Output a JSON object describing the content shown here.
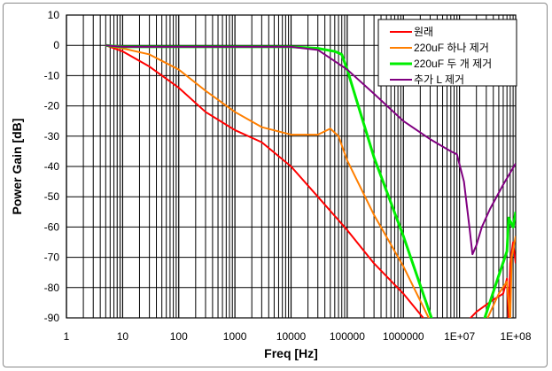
{
  "chart_data": {
    "type": "line",
    "xlabel": "Freq [Hz]",
    "ylabel": "Power Gain [dB]",
    "xscale": "log",
    "xlim": [
      1,
      100000000
    ],
    "ylim": [
      -90,
      10
    ],
    "grid": true,
    "legend_position": "top-right",
    "x_tick_labels": [
      "1",
      "10",
      "100",
      "1000",
      "10000",
      "100000",
      "1000000",
      "1E+07",
      "1E+08"
    ],
    "y_tick_labels": [
      "10",
      "0",
      "-10",
      "-20",
      "-30",
      "-40",
      "-50",
      "-60",
      "-70",
      "-80",
      "-90"
    ],
    "series": [
      {
        "name": "원래",
        "color": "#ff0000",
        "segments": [
          [
            [
              5,
              0
            ],
            [
              10,
              -2
            ],
            [
              30,
              -7
            ],
            [
              100,
              -14
            ],
            [
              300,
              -22
            ],
            [
              1000,
              -28
            ],
            [
              3000,
              -32
            ],
            [
              10000,
              -40
            ],
            [
              30000,
              -50
            ],
            [
              100000,
              -61
            ],
            [
              300000,
              -72
            ],
            [
              1000000,
              -82
            ],
            [
              2500000,
              -91
            ]
          ],
          [
            [
              14000000,
              -91
            ],
            [
              20000000,
              -88
            ],
            [
              40000000,
              -84
            ],
            [
              60000000,
              -82
            ],
            [
              70000000,
              -77
            ],
            [
              75000000,
              -91
            ],
            [
              80000000,
              -72
            ],
            [
              90000000,
              -65
            ],
            [
              100000000,
              -72
            ]
          ]
        ]
      },
      {
        "name": "220uF 하나 제거",
        "color": "#ff7f00",
        "segments": [
          [
            [
              5,
              0
            ],
            [
              10,
              -1
            ],
            [
              30,
              -3
            ],
            [
              100,
              -8
            ],
            [
              300,
              -15
            ],
            [
              1000,
              -22
            ],
            [
              3000,
              -27
            ],
            [
              10000,
              -29.5
            ],
            [
              30000,
              -29.5
            ],
            [
              50000,
              -27.5
            ],
            [
              70000,
              -30
            ],
            [
              100000,
              -38
            ],
            [
              300000,
              -56
            ],
            [
              1000000,
              -73
            ],
            [
              3000000,
              -91
            ]
          ],
          [
            [
              30000000,
              -91
            ],
            [
              50000000,
              -82
            ],
            [
              70000000,
              -78
            ],
            [
              80000000,
              -91
            ],
            [
              85000000,
              -70
            ],
            [
              100000000,
              -63
            ]
          ]
        ]
      },
      {
        "name": "220uF 두 개 제거",
        "color": "#00ee00",
        "segments": [
          [
            [
              5,
              0
            ],
            [
              10,
              -0.5
            ],
            [
              100,
              -0.5
            ],
            [
              1000,
              -0.5
            ],
            [
              10000,
              -0.5
            ],
            [
              30000,
              -1
            ],
            [
              60000,
              -2
            ],
            [
              80000,
              -3
            ],
            [
              100000,
              -8
            ],
            [
              300000,
              -37
            ],
            [
              1000000,
              -63
            ],
            [
              3300000,
              -91
            ]
          ],
          [
            [
              27000000,
              -91
            ],
            [
              50000000,
              -76
            ],
            [
              70000000,
              -68
            ],
            [
              75000000,
              -57
            ],
            [
              90000000,
              -60
            ],
            [
              100000000,
              -55
            ]
          ]
        ]
      },
      {
        "name": "추가 L 제거",
        "color": "#800080",
        "segments": [
          [
            [
              5,
              0
            ],
            [
              10,
              -0.5
            ],
            [
              100,
              -0.5
            ],
            [
              1000,
              -0.5
            ],
            [
              10000,
              -0.5
            ],
            [
              30000,
              -1.5
            ],
            [
              100000,
              -8
            ],
            [
              300000,
              -16
            ],
            [
              1000000,
              -25
            ],
            [
              3000000,
              -31
            ],
            [
              7000000,
              -35
            ],
            [
              9000000,
              -36
            ],
            [
              12000000,
              -45
            ],
            [
              15000000,
              -60
            ],
            [
              17000000,
              -69
            ],
            [
              20000000,
              -66
            ],
            [
              25000000,
              -60
            ],
            [
              35000000,
              -54
            ],
            [
              60000000,
              -46
            ],
            [
              100000000,
              -39
            ]
          ]
        ]
      }
    ]
  }
}
